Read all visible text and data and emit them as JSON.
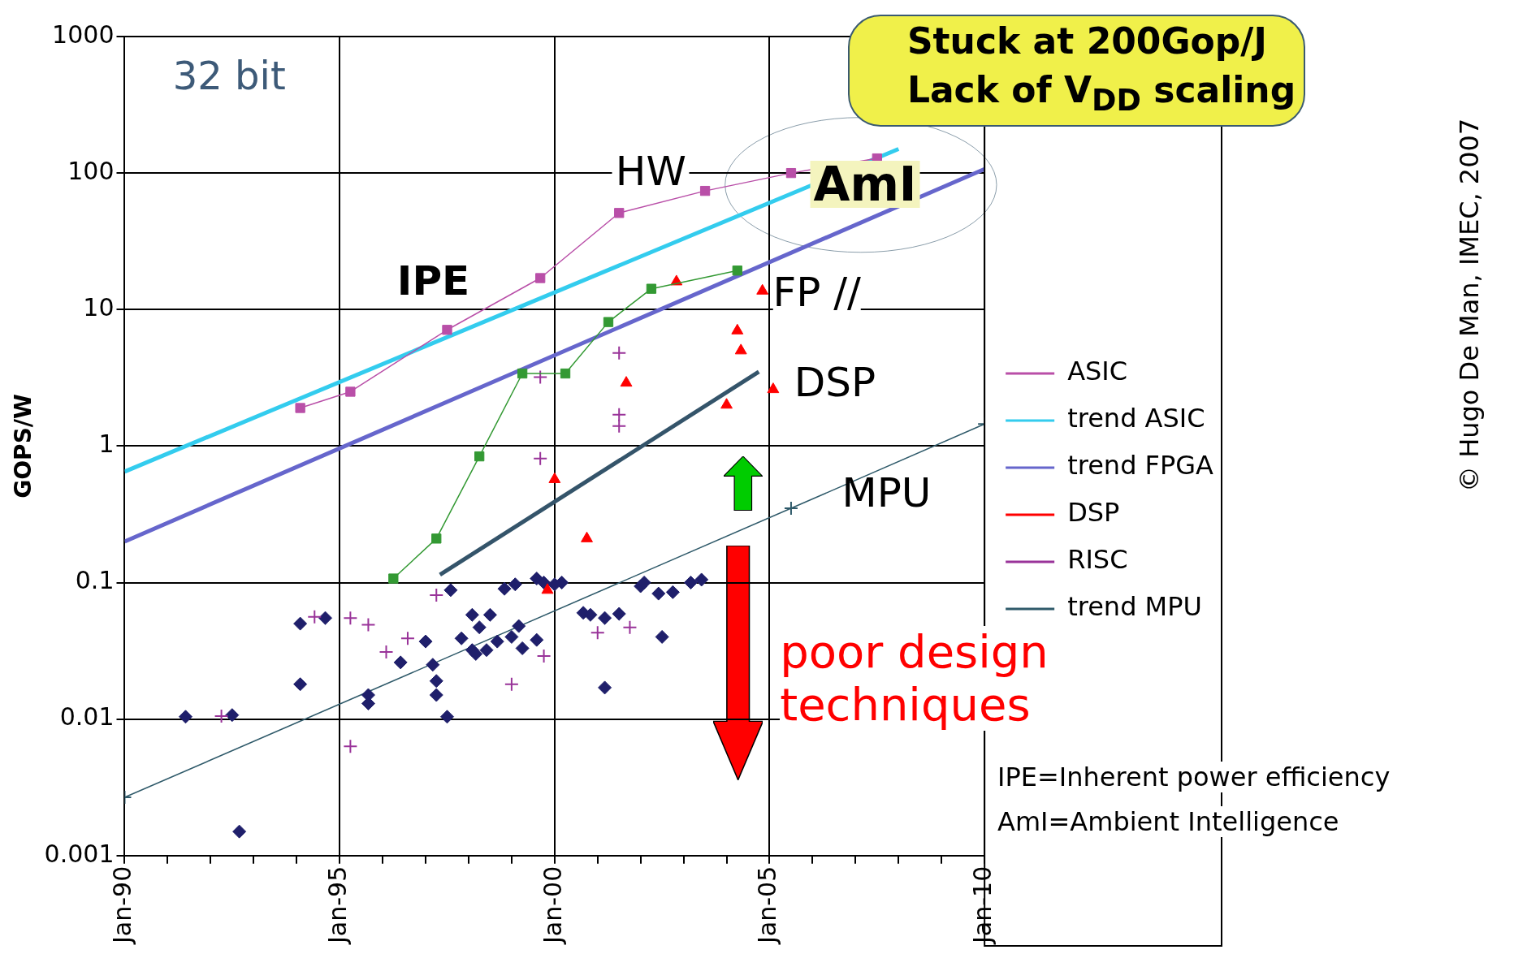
{
  "chart_data": {
    "type": "line",
    "ylabel": "GOPS/W",
    "log": "y",
    "grid": true,
    "legend": "right",
    "xlim": [
      "1990-01",
      "2010-01"
    ],
    "xticks": [
      {
        "value": "1990-01",
        "label": "Jan-90"
      },
      {
        "value": "1991-01",
        "label": null
      },
      {
        "value": "1992-01",
        "label": null
      },
      {
        "value": "1993-01",
        "label": null
      },
      {
        "value": "1994-01",
        "label": null
      },
      {
        "value": "1995-01",
        "label": "Jan-95"
      },
      {
        "value": "1996-01",
        "label": null
      },
      {
        "value": "1997-01",
        "label": null
      },
      {
        "value": "1998-01",
        "label": null
      },
      {
        "value": "1999-01",
        "label": null
      },
      {
        "value": "2000-01",
        "label": "Jan-00"
      },
      {
        "value": "2001-01",
        "label": null
      },
      {
        "value": "2002-01",
        "label": null
      },
      {
        "value": "2003-01",
        "label": null
      },
      {
        "value": "2004-01",
        "label": null
      },
      {
        "value": "2005-01",
        "label": "Jan-05"
      },
      {
        "value": "2006-01",
        "label": null
      },
      {
        "value": "2007-01",
        "label": null
      },
      {
        "value": "2008-01",
        "label": null
      },
      {
        "value": "2009-01",
        "label": null
      },
      {
        "value": "2010-01",
        "label": "Jan-10"
      }
    ],
    "ylim": [
      0.001,
      1000
    ],
    "yticks": [
      0.001,
      0.01,
      0.1,
      1,
      10,
      100,
      1000
    ],
    "series": [
      {
        "name": "ASIC",
        "type": "line",
        "marker": "square",
        "color": "#b94fa8",
        "x": [
          "1994-02",
          "1995-04",
          "1997-07",
          "1999-09",
          "2001-07",
          "2003-07",
          "2005-07",
          "2007-07"
        ],
        "values": [
          1.9,
          2.5,
          7.1,
          17,
          51,
          74,
          100,
          128
        ]
      },
      {
        "name": "trend ASIC",
        "type": "line",
        "marker": "none",
        "color": "#33ccee",
        "x": [
          "1990-01",
          "2008-01"
        ],
        "values": [
          0.65,
          150
        ]
      },
      {
        "type": "line",
        "marker": "square",
        "color": "#339933",
        "x": [
          "1996-04",
          "1997-04",
          "1998-04",
          "1999-04",
          "2000-04",
          "2001-04",
          "2002-04",
          "2004-04"
        ],
        "values": [
          0.107,
          0.21,
          0.84,
          3.4,
          3.4,
          8.1,
          14.2,
          19.3
        ]
      },
      {
        "name": "trend FPGA",
        "type": "line",
        "marker": "none",
        "color": "#6666cc",
        "x": [
          "1990-01",
          "2010-01"
        ],
        "values": [
          0.2,
          107
        ]
      },
      {
        "name": "DSP",
        "type": "scatter",
        "marker": "triangle",
        "color": "#ff0000",
        "x": [
          "2002-11",
          "2004-04",
          "2004-05",
          "2004-01",
          "2005-02",
          "2001-09",
          "2000-01",
          "2000-10",
          "1999-11",
          "2004-11"
        ],
        "values": [
          16,
          7,
          5,
          2,
          2.6,
          2.9,
          0.57,
          0.21,
          0.088,
          13.7
        ]
      },
      {
        "name": "RISC",
        "type": "scatter",
        "marker": "cross",
        "color": "#993399",
        "x": [
          "1999-09",
          "2001-07",
          "2001-07",
          "2001-07",
          "1999-09",
          "1997-04",
          "1994-06",
          "1995-04",
          "1995-09",
          "1996-08",
          "1996-02",
          "1999-01",
          "1999-10",
          "2001-01",
          "2001-10",
          "1992-04",
          "1995-04"
        ],
        "values": [
          3.2,
          4.8,
          1.7,
          1.4,
          0.81,
          0.081,
          0.056,
          0.055,
          0.049,
          0.039,
          0.031,
          0.018,
          0.029,
          0.043,
          0.047,
          0.0105,
          0.0063
        ]
      },
      {
        "type": "scatter",
        "marker": "diamond",
        "color": "#1f1f6b",
        "x": [
          "1991-06",
          "1992-07",
          "1992-09",
          "1994-02",
          "1994-09",
          "1994-02",
          "1995-09",
          "1995-09",
          "1996-06",
          "1997-01",
          "1997-03",
          "1997-04",
          "1997-04",
          "1997-07",
          "1997-08",
          "1998-02",
          "1998-07",
          "1998-04",
          "1997-11",
          "1998-02",
          "1998-03",
          "1998-06",
          "1998-09",
          "1998-11",
          "1999-02",
          "1999-03",
          "1999-01",
          "1999-04",
          "1999-08",
          "1999-08",
          "1999-10",
          "2000-01",
          "2000-03",
          "2000-09",
          "2000-11",
          "2001-03",
          "2001-07",
          "2001-03",
          "2002-01",
          "2002-02",
          "2002-06",
          "2002-10",
          "2002-07",
          "2003-03",
          "2003-06"
        ],
        "values": [
          0.0104,
          0.0107,
          0.0015,
          0.05,
          0.055,
          0.018,
          0.015,
          0.013,
          0.026,
          0.037,
          0.025,
          0.019,
          0.015,
          0.0104,
          0.088,
          0.058,
          0.058,
          0.047,
          0.039,
          0.032,
          0.03,
          0.032,
          0.037,
          0.09,
          0.097,
          0.048,
          0.04,
          0.033,
          0.038,
          0.107,
          0.1,
          0.097,
          0.1,
          0.06,
          0.058,
          0.017,
          0.059,
          0.055,
          0.094,
          0.1,
          0.083,
          0.085,
          0.04,
          0.1,
          0.105
        ]
      },
      {
        "name": "trend MPU",
        "type": "line",
        "marker": "cross",
        "color": "#2f5a6a",
        "x": [
          "1990-01",
          "2005-07",
          "2010-01"
        ],
        "values": [
          0.00267,
          0.35,
          1.45
        ]
      },
      {
        "type": "line",
        "marker": "none",
        "color": "#34546a",
        "x": [
          "1997-05",
          "2004-10"
        ],
        "values": [
          0.114,
          3.5
        ]
      }
    ],
    "annotations": [
      "32 bit",
      "Stuck at 200Gop/J",
      "Lack of V$_{DD}$ scaling",
      "HW",
      "IPE",
      "AmI",
      "FP //",
      "DSP",
      "MPU",
      "poor design techniques",
      "IPE=Inherent power efficiency",
      "AmI=Ambient Intelligence",
      "© Hugo De Man, IMEC, 2007"
    ]
  }
}
